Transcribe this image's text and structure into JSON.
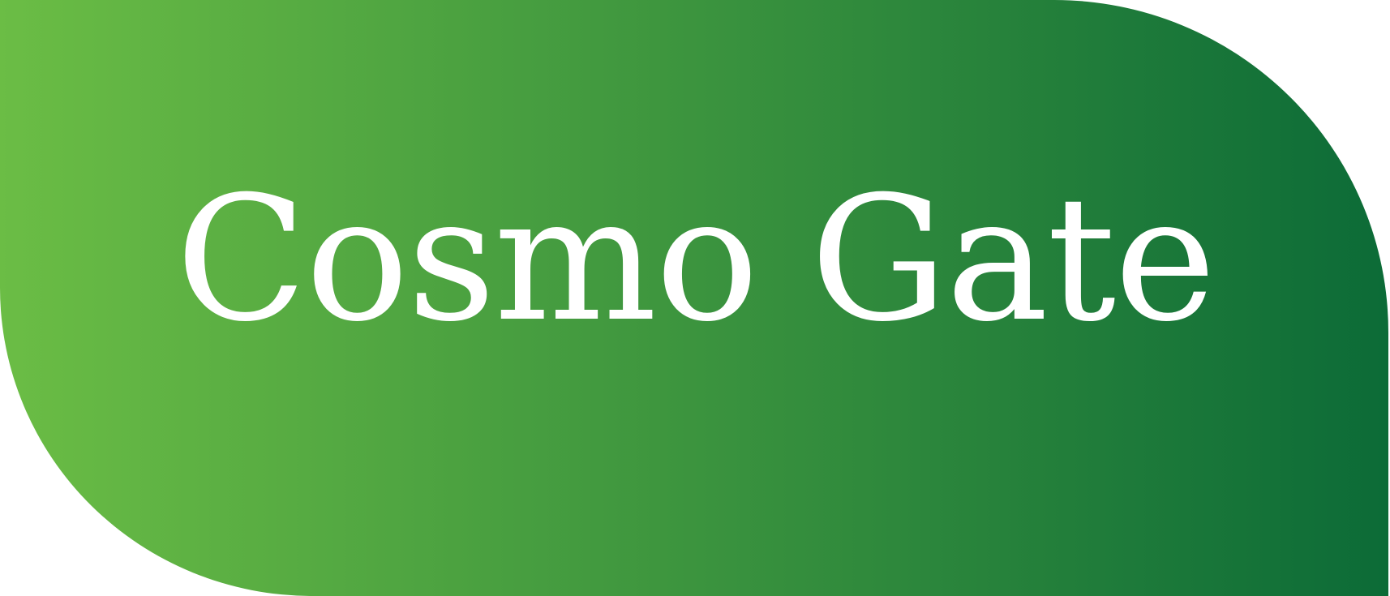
{
  "logo": {
    "text": "Cosmo Gate",
    "text_color": "#ffffff",
    "gradient_start": "#6bbd45",
    "gradient_end": "#0c6b37"
  }
}
